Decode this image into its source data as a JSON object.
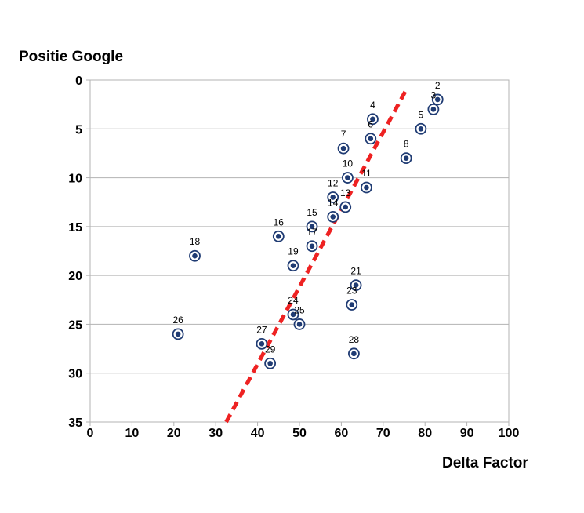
{
  "chart_data": {
    "type": "scatter",
    "title": "",
    "xlabel": "Delta Factor",
    "ylabel": "Positie Google",
    "xlim": [
      0,
      100
    ],
    "ylim": [
      0,
      35
    ],
    "y_inverted": true,
    "xticks": [
      0,
      10,
      20,
      30,
      40,
      50,
      60,
      70,
      80,
      90,
      100
    ],
    "yticks": [
      0,
      5,
      10,
      15,
      20,
      25,
      30,
      35
    ],
    "grid": "horizontal",
    "legend": "none",
    "series": [
      {
        "points": [
          {
            "label": "2",
            "x": 83,
            "y": 2
          },
          {
            "label": "3",
            "x": 82,
            "y": 3
          },
          {
            "label": "4",
            "x": 67.5,
            "y": 4
          },
          {
            "label": "5",
            "x": 79,
            "y": 5
          },
          {
            "label": "6",
            "x": 67,
            "y": 6
          },
          {
            "label": "7",
            "x": 60.5,
            "y": 7
          },
          {
            "label": "8",
            "x": 75.5,
            "y": 8
          },
          {
            "label": "10",
            "x": 61.5,
            "y": 10
          },
          {
            "label": "11",
            "x": 66,
            "y": 11
          },
          {
            "label": "12",
            "x": 58,
            "y": 12
          },
          {
            "label": "13",
            "x": 61,
            "y": 13
          },
          {
            "label": "14",
            "x": 58,
            "y": 14
          },
          {
            "label": "15",
            "x": 53,
            "y": 15
          },
          {
            "label": "16",
            "x": 45,
            "y": 16
          },
          {
            "label": "17",
            "x": 53,
            "y": 17
          },
          {
            "label": "18",
            "x": 25,
            "y": 18
          },
          {
            "label": "19",
            "x": 48.5,
            "y": 19
          },
          {
            "label": "21",
            "x": 63.5,
            "y": 21
          },
          {
            "label": "23",
            "x": 62.5,
            "y": 23
          },
          {
            "label": "24",
            "x": 48.5,
            "y": 24
          },
          {
            "label": "25",
            "x": 50,
            "y": 25
          },
          {
            "label": "26",
            "x": 21,
            "y": 26
          },
          {
            "label": "27",
            "x": 41,
            "y": 27
          },
          {
            "label": "28",
            "x": 63,
            "y": 28
          },
          {
            "label": "29",
            "x": 43,
            "y": 29
          }
        ]
      }
    ],
    "trendline": {
      "style": "dashed",
      "color": "#ee2222",
      "from": {
        "x": 32.5,
        "y": 35
      },
      "to": {
        "x": 75.5,
        "y": 1
      }
    },
    "colors": {
      "marker": "#1f3b73",
      "grid": "#b3b3b3",
      "trend": "#ee2222"
    }
  }
}
